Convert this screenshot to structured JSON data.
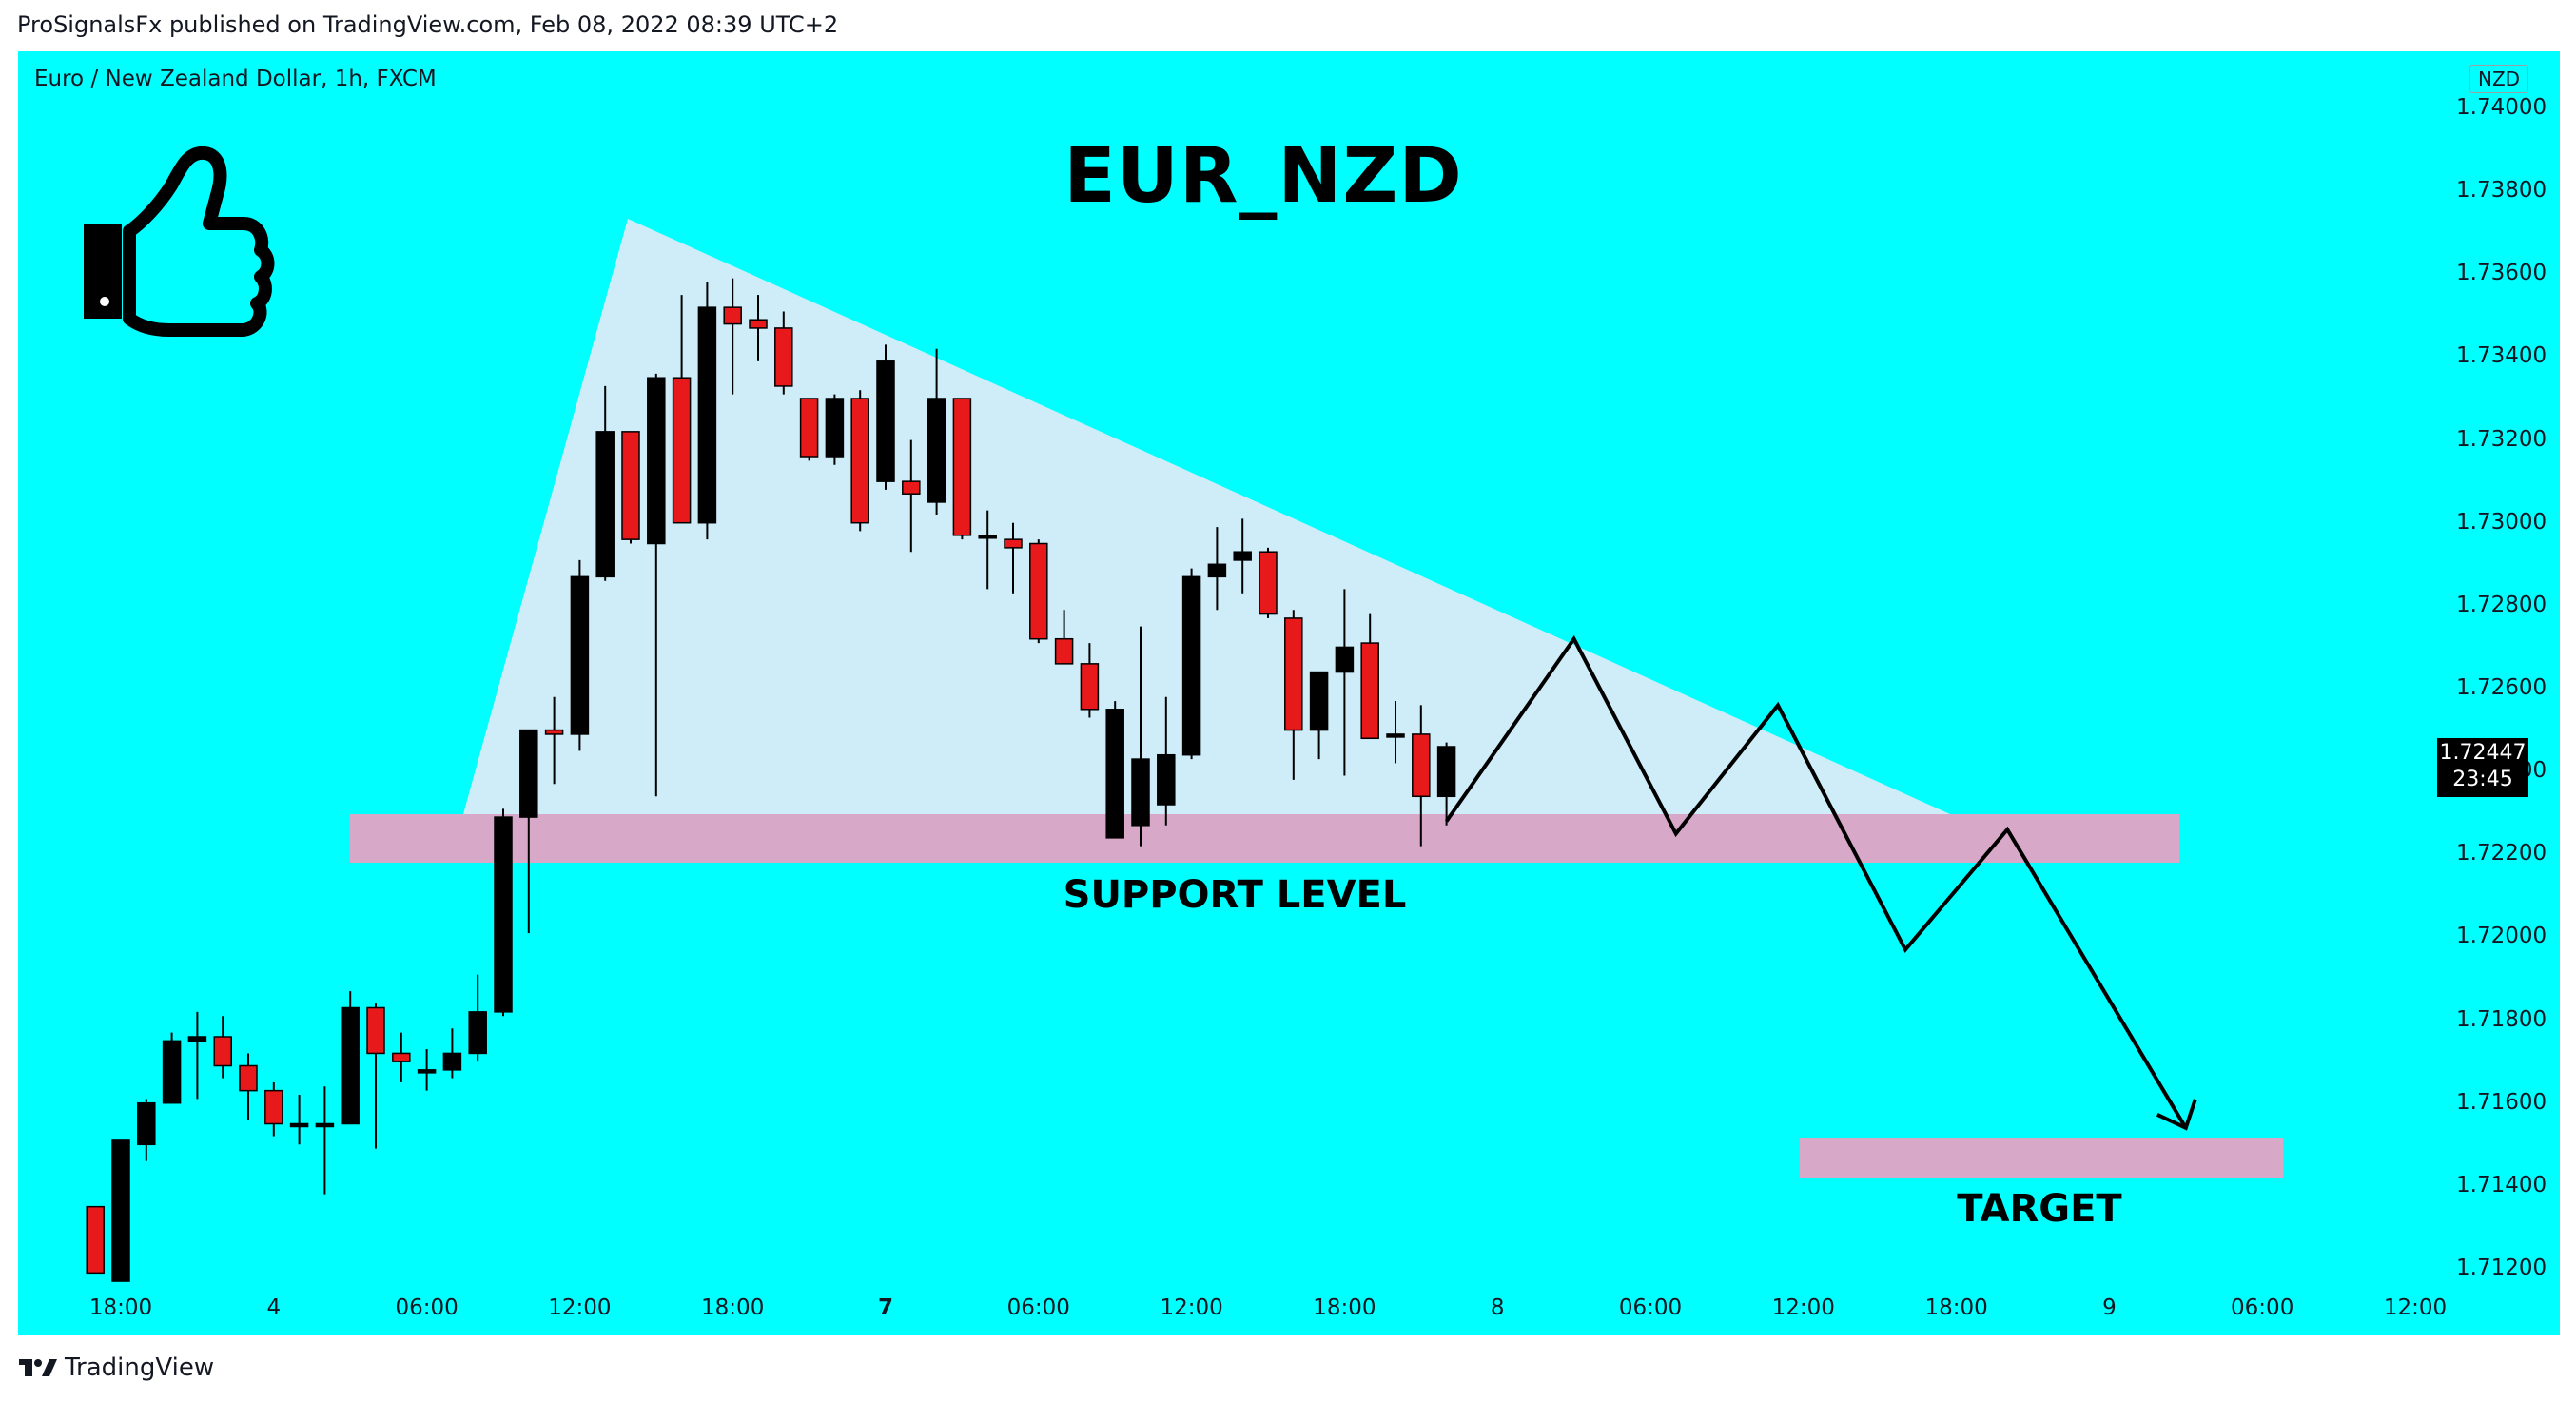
{
  "header": {
    "published_text": "ProSignalsFx published on TradingView.com, Feb 08, 2022 08:39 UTC+2"
  },
  "symbol": {
    "description": "Euro / New Zealand Dollar, 1h, FXCM",
    "currency": "NZD"
  },
  "last_price": {
    "price": "1.72447",
    "countdown": "23:45",
    "bg_color": "#000000"
  },
  "annotations": {
    "title": "EUR_NZD",
    "support_label": "SUPPORT LEVEL",
    "target_label": "TARGET",
    "thumbs_up_icon": "thumbs-up-icon"
  },
  "colors": {
    "background": "#00ffff",
    "bull": "#000000",
    "bear": "#e8191a",
    "zone": "#d8a8c8",
    "triangle": "#e0ecf8"
  },
  "footer": {
    "brand": "TradingView",
    "logo_icon": "tradingview-logo-icon"
  },
  "chart_data": {
    "type": "candlestick",
    "x_ticks": [
      {
        "label": "18:00",
        "index": 0
      },
      {
        "label": "4",
        "index": 6,
        "bold": false
      },
      {
        "label": "06:00",
        "index": 12
      },
      {
        "label": "12:00",
        "index": 18
      },
      {
        "label": "18:00",
        "index": 24
      },
      {
        "label": "7",
        "index": 30,
        "bold": true
      },
      {
        "label": "06:00",
        "index": 36
      },
      {
        "label": "12:00",
        "index": 42
      },
      {
        "label": "18:00",
        "index": 48
      },
      {
        "label": "8",
        "index": 54
      },
      {
        "label": "06:00",
        "index": 60
      },
      {
        "label": "12:00",
        "index": 66
      },
      {
        "label": "18:00",
        "index": 72
      },
      {
        "label": "9",
        "index": 78
      },
      {
        "label": "06:00",
        "index": 84
      },
      {
        "label": "12:00",
        "index": 90
      }
    ],
    "y_ticks": [
      "1.74000",
      "1.73800",
      "1.73600",
      "1.73400",
      "1.73200",
      "1.73000",
      "1.72800",
      "1.72600",
      "1.72400",
      "1.72200",
      "1.72000",
      "1.71800",
      "1.71600",
      "1.71400",
      "1.71200"
    ],
    "ylim": [
      1.7115,
      1.7405
    ],
    "candles": [
      [
        -1,
        1.7135,
        1.7135,
        1.7119,
        1.7119
      ],
      [
        0,
        1.7117,
        1.7151,
        1.7117,
        1.7151
      ],
      [
        1,
        1.715,
        1.7161,
        1.7146,
        1.716
      ],
      [
        2,
        1.716,
        1.7177,
        1.716,
        1.7175
      ],
      [
        3,
        1.7175,
        1.7182,
        1.7161,
        1.7176
      ],
      [
        4,
        1.7176,
        1.7181,
        1.7166,
        1.7169
      ],
      [
        5,
        1.7169,
        1.7172,
        1.7156,
        1.7163
      ],
      [
        6,
        1.7163,
        1.7165,
        1.7152,
        1.7155
      ],
      [
        7,
        1.7155,
        1.7162,
        1.715,
        1.7155
      ],
      [
        8,
        1.7155,
        1.7164,
        1.7138,
        1.7155
      ],
      [
        9,
        1.7155,
        1.7187,
        1.7155,
        1.7183
      ],
      [
        10,
        1.7183,
        1.7184,
        1.7149,
        1.7172
      ],
      [
        11,
        1.7172,
        1.7177,
        1.7165,
        1.717
      ],
      [
        12,
        1.7168,
        1.7173,
        1.7163,
        1.7168
      ],
      [
        13,
        1.7168,
        1.7178,
        1.7166,
        1.7172
      ],
      [
        14,
        1.7172,
        1.7191,
        1.717,
        1.7182
      ],
      [
        15,
        1.7182,
        1.7231,
        1.7181,
        1.7229
      ],
      [
        16,
        1.7229,
        1.725,
        1.7201,
        1.725
      ],
      [
        17,
        1.725,
        1.7258,
        1.7237,
        1.7249
      ],
      [
        18,
        1.7249,
        1.7291,
        1.7245,
        1.7287
      ],
      [
        19,
        1.7287,
        1.7333,
        1.7286,
        1.7322
      ],
      [
        20,
        1.7322,
        1.7322,
        1.7295,
        1.7296
      ],
      [
        21,
        1.7295,
        1.7336,
        1.7234,
        1.7335
      ],
      [
        22,
        1.7335,
        1.7355,
        1.73,
        1.73
      ],
      [
        23,
        1.73,
        1.7358,
        1.7296,
        1.7352
      ],
      [
        24,
        1.7352,
        1.7359,
        1.7331,
        1.7348
      ],
      [
        25,
        1.7349,
        1.7355,
        1.7339,
        1.7347
      ],
      [
        26,
        1.7347,
        1.7351,
        1.7331,
        1.7333
      ],
      [
        27,
        1.733,
        1.733,
        1.7315,
        1.7316
      ],
      [
        28,
        1.7316,
        1.7331,
        1.7314,
        1.733
      ],
      [
        29,
        1.733,
        1.7332,
        1.7298,
        1.73
      ],
      [
        30,
        1.731,
        1.7343,
        1.7308,
        1.7339
      ],
      [
        31,
        1.731,
        1.732,
        1.7293,
        1.7307
      ],
      [
        32,
        1.7305,
        1.7342,
        1.7302,
        1.733
      ],
      [
        33,
        1.733,
        1.733,
        1.7296,
        1.7297
      ],
      [
        34,
        1.7297,
        1.7303,
        1.7284,
        1.7297
      ],
      [
        35,
        1.7296,
        1.73,
        1.7283,
        1.7294
      ],
      [
        36,
        1.7295,
        1.7296,
        1.7271,
        1.7272
      ],
      [
        37,
        1.7272,
        1.7279,
        1.7267,
        1.7266
      ],
      [
        38,
        1.7266,
        1.7271,
        1.7253,
        1.7255
      ],
      [
        39,
        1.7224,
        1.7257,
        1.7224,
        1.7255
      ],
      [
        40,
        1.7227,
        1.7275,
        1.7222,
        1.7243
      ],
      [
        41,
        1.7232,
        1.7258,
        1.7227,
        1.7244
      ],
      [
        42,
        1.7244,
        1.7289,
        1.7243,
        1.7287
      ],
      [
        43,
        1.7287,
        1.7299,
        1.7279,
        1.729
      ],
      [
        44,
        1.7291,
        1.7301,
        1.7283,
        1.7293
      ],
      [
        45,
        1.7293,
        1.7294,
        1.7277,
        1.7278
      ],
      [
        46,
        1.7277,
        1.7279,
        1.7238,
        1.725
      ],
      [
        47,
        1.725,
        1.7263,
        1.7243,
        1.7264
      ],
      [
        48,
        1.7264,
        1.7284,
        1.7239,
        1.727
      ],
      [
        49,
        1.7271,
        1.7278,
        1.7248,
        1.7248
      ],
      [
        50,
        1.7249,
        1.7257,
        1.7242,
        1.7249
      ],
      [
        51,
        1.7249,
        1.7256,
        1.7222,
        1.7234
      ],
      [
        52,
        1.7234,
        1.7247,
        1.7227,
        1.7246
      ]
    ],
    "support_zone": [
      1.7218,
      1.723
    ],
    "target_zone": [
      1.7145,
      1.7154
    ],
    "projection_path": [
      [
        52,
        1.7228
      ],
      [
        57,
        1.7272
      ],
      [
        61,
        1.7225
      ],
      [
        65,
        1.7256
      ],
      [
        70,
        1.7197
      ],
      [
        74,
        1.7226
      ],
      [
        81,
        1.7154
      ]
    ],
    "triangle": [
      [
        13,
        1.7231
      ],
      [
        18,
        1.7375
      ],
      [
        73,
        1.7231
      ]
    ]
  }
}
